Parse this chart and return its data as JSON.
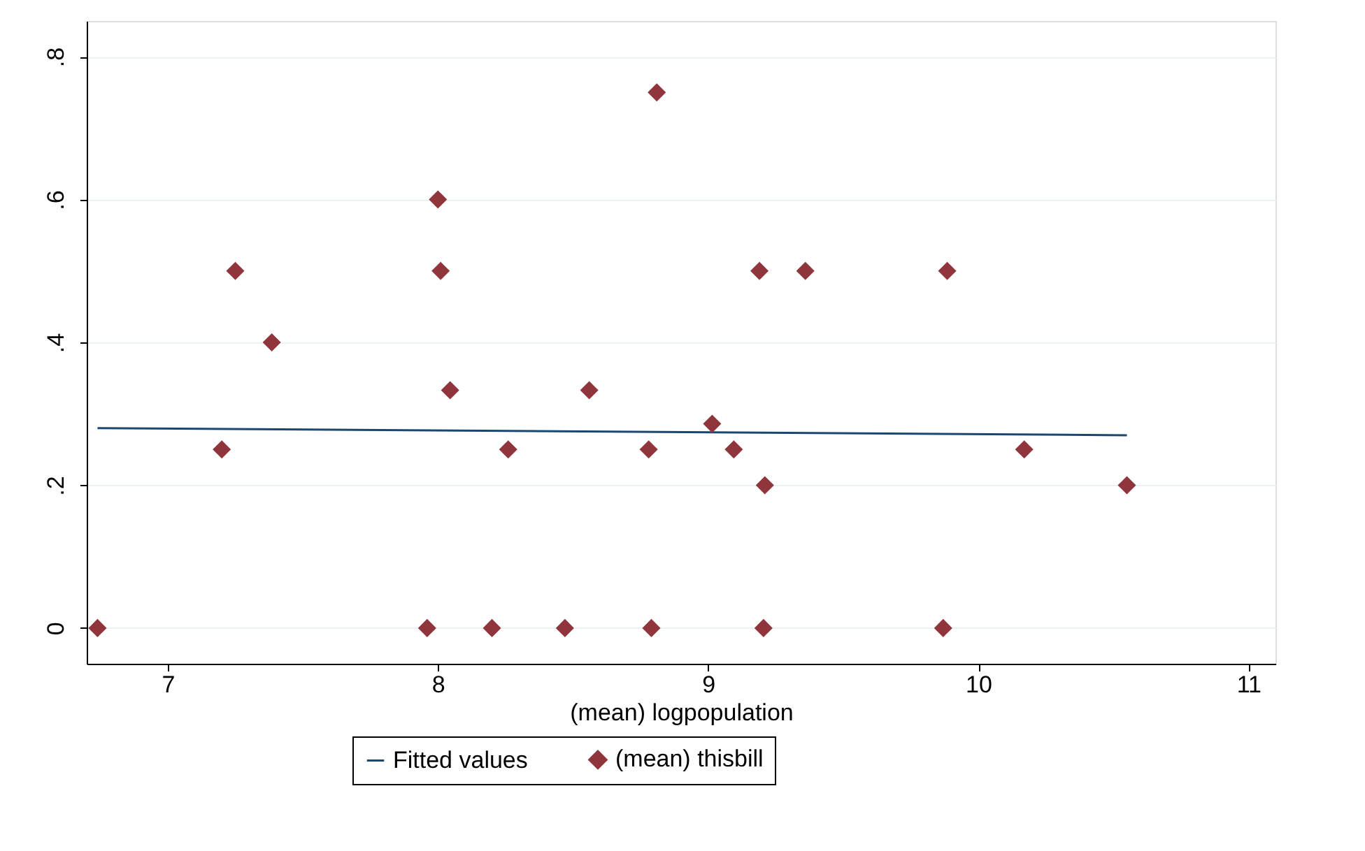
{
  "chart_data": {
    "type": "scatter",
    "xlabel": "(mean) logpopulation",
    "xlim": [
      6.7,
      11.1
    ],
    "ylim": [
      -0.05,
      0.85
    ],
    "xticks": [
      7,
      8,
      9,
      10,
      11
    ],
    "yticks": [
      0,
      {
        "value": 0.2,
        "label": ".2"
      },
      {
        "value": 0.4,
        "label": ".4"
      },
      {
        "value": 0.6,
        "label": ".6"
      },
      {
        "value": 0.8,
        "label": ".8"
      }
    ],
    "grid": "y",
    "legend": "bottom",
    "series": [
      {
        "name": "Fitted values",
        "type": "line",
        "marker": "none",
        "line_style": "solid",
        "color": "#1a476f",
        "x": [
          6.74,
          10.55
        ],
        "values": [
          0.28,
          0.27
        ]
      },
      {
        "name": "(mean) thisbill",
        "type": "scatter",
        "marker": "diamond",
        "color": "#90353b",
        "x": [
          6.74,
          7.2,
          7.25,
          7.385,
          7.96,
          8.0,
          8.01,
          8.045,
          8.2,
          8.26,
          8.47,
          8.56,
          8.78,
          8.79,
          8.81,
          9.015,
          9.095,
          9.19,
          9.21,
          9.205,
          9.36,
          9.87,
          9.885,
          10.17,
          10.55
        ],
        "values": [
          0,
          0.25,
          0.5,
          0.4,
          0,
          0.6,
          0.5,
          0.333,
          0,
          0.25,
          0,
          0.333,
          0.25,
          0,
          0.75,
          0.286,
          0.25,
          0.5,
          0.2,
          0,
          0.5,
          0,
          0.5,
          0.25,
          0.2
        ]
      }
    ]
  }
}
